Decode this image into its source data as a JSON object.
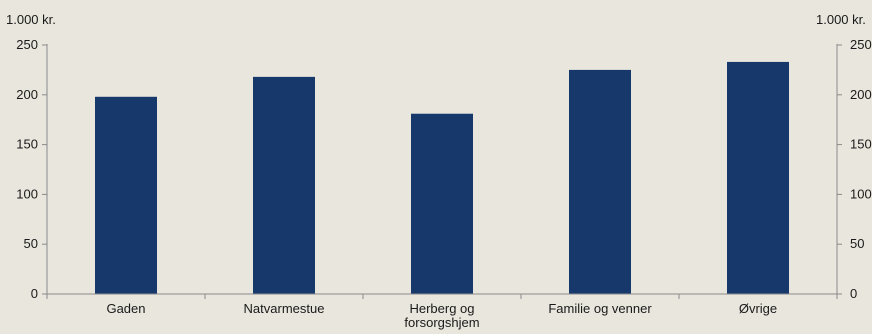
{
  "chart_data": {
    "type": "bar",
    "title": "",
    "xlabel": "",
    "ylabel_left": "1.000 kr.",
    "ylabel_right": "1.000 kr.",
    "ylim": [
      0,
      250
    ],
    "yticks": [
      0,
      50,
      100,
      150,
      200,
      250
    ],
    "grid": false,
    "categories": [
      [
        "Gaden"
      ],
      [
        "Natvarmestue"
      ],
      [
        "Herberg og",
        "forsorgshjem"
      ],
      [
        "Familie og venner"
      ],
      [
        "Øvrige"
      ]
    ],
    "values": [
      198,
      218,
      181,
      225,
      233
    ],
    "bar_color": "#17386b",
    "axis_color": "#8a8a8a",
    "background_color": "#e9e6dd"
  }
}
